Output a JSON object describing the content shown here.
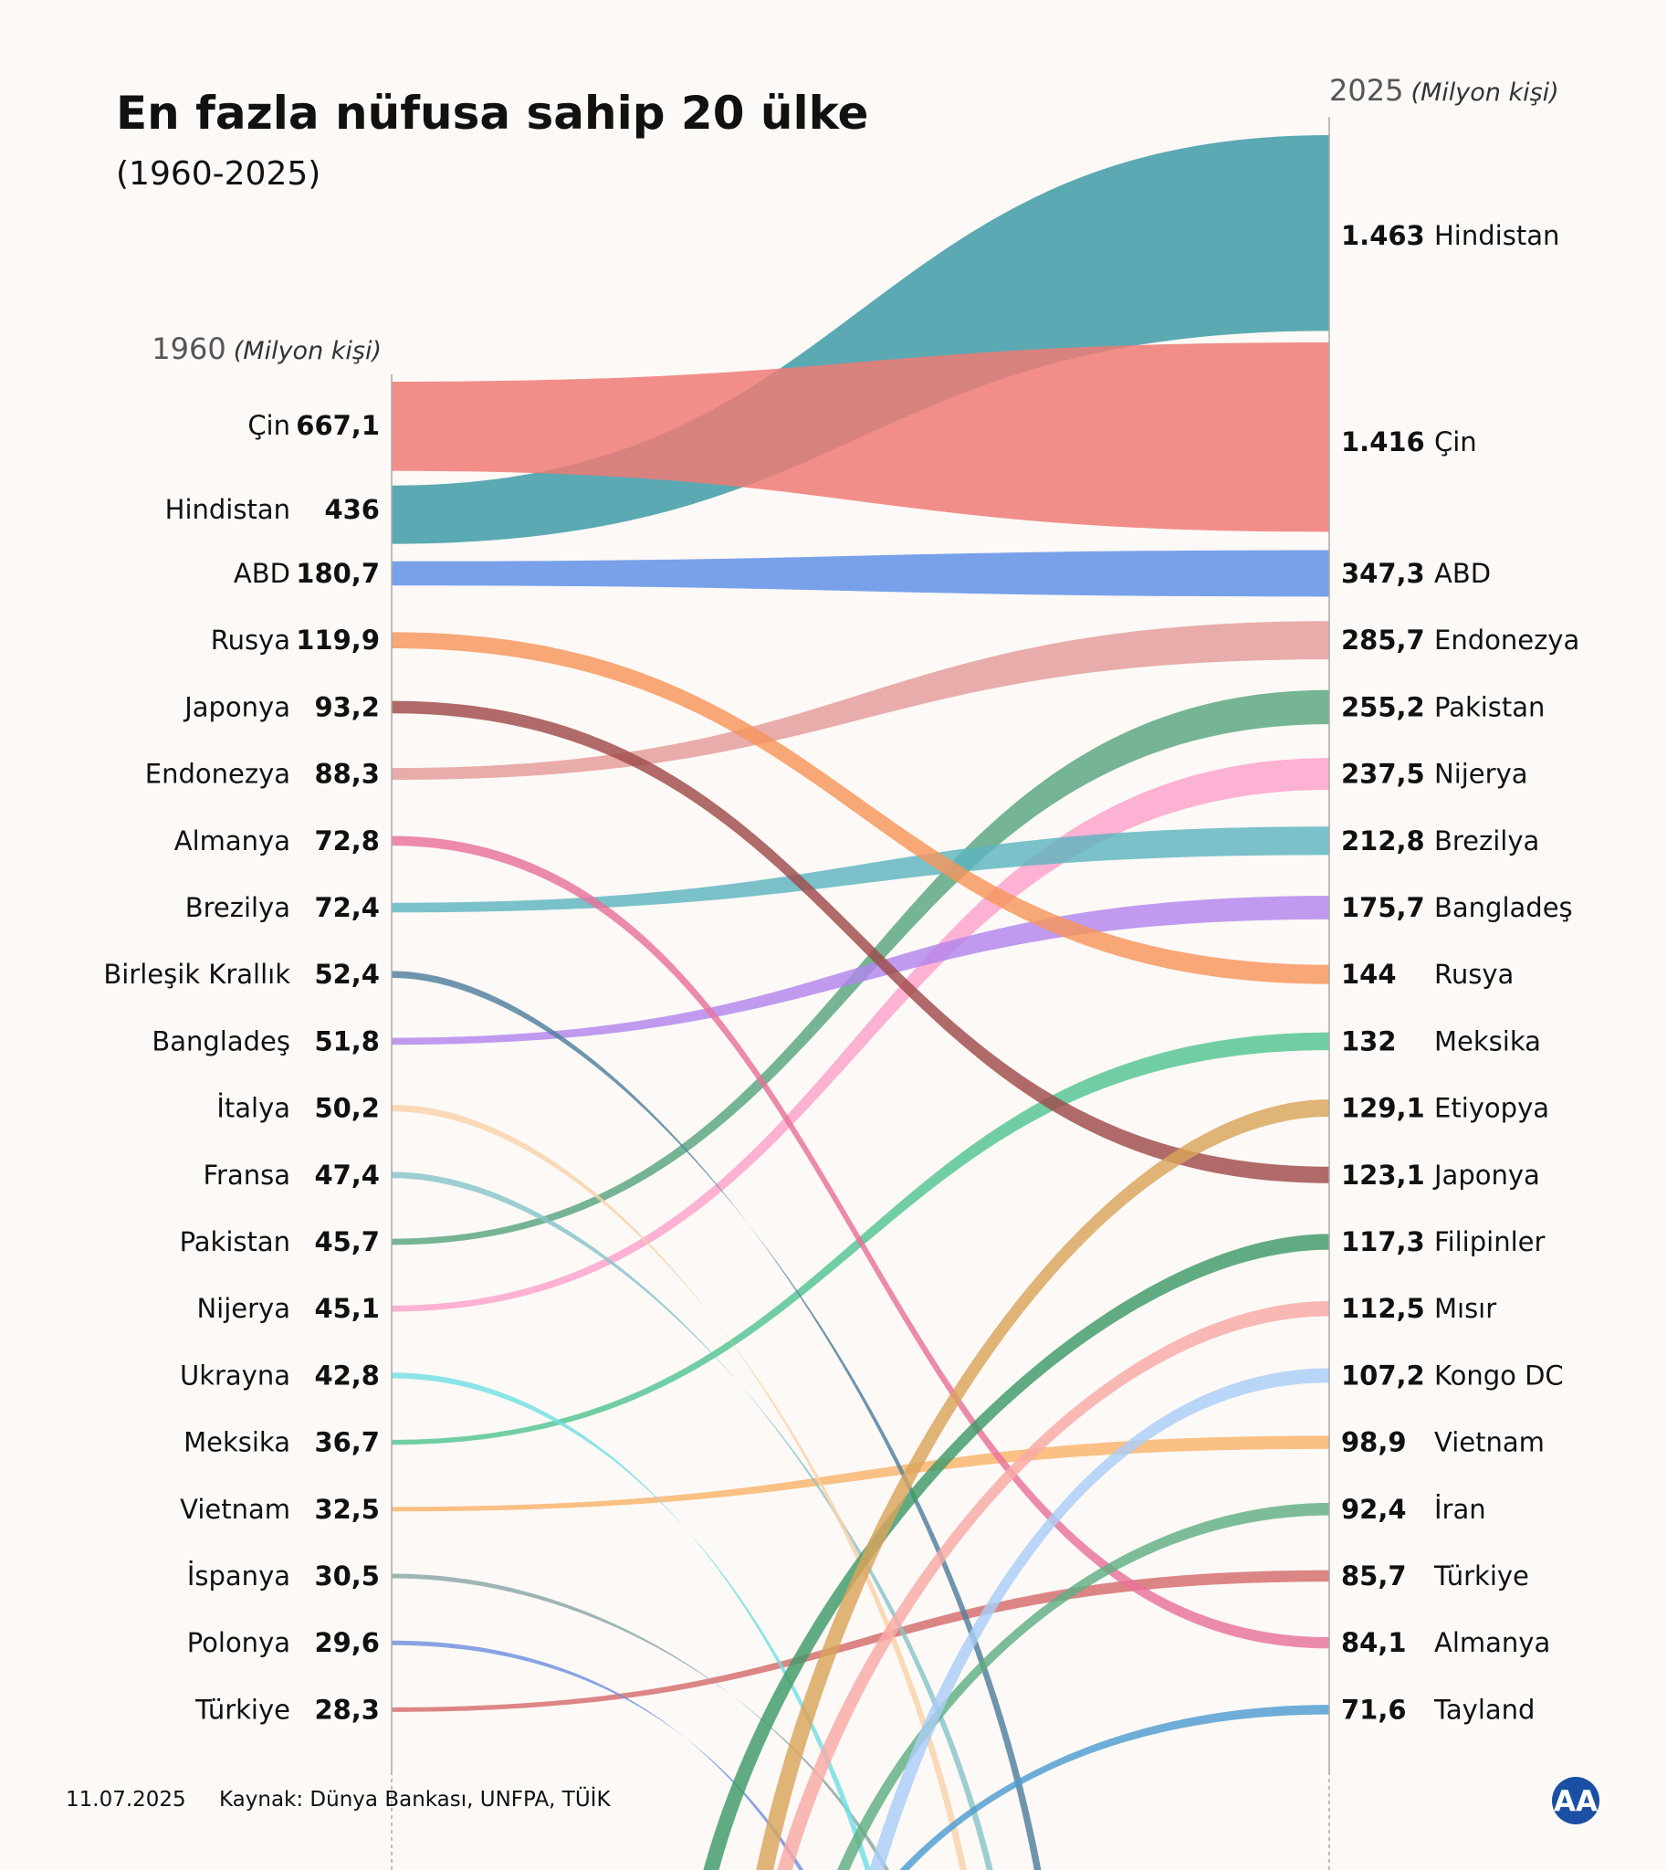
{
  "title": "En fazla nüfusa sahip 20 ülke",
  "subtitle": "(1960-2025)",
  "footer": {
    "date": "11.07.2025",
    "source": "Kaynak: Dünya Bankası, UNFPA, TÜİK",
    "logo_text": "AA"
  },
  "chart_data": {
    "type": "sankey-bump",
    "unit": "(Milyon kişi)",
    "left_year": "1960",
    "right_year": "2025",
    "left": [
      {
        "name": "Çin",
        "value": "667,1",
        "v": 667.1,
        "color": "#ef7b77"
      },
      {
        "name": "Hindistan",
        "value": "436",
        "v": 436,
        "color": "#3e9ba6"
      },
      {
        "name": "ABD",
        "value": "180,7",
        "v": 180.7,
        "color": "#5b8ee6"
      },
      {
        "name": "Rusya",
        "value": "119,9",
        "v": 119.9,
        "color": "#f7955a"
      },
      {
        "name": "Japonya",
        "value": "93,2",
        "v": 93.2,
        "color": "#9f4b49"
      },
      {
        "name": "Endonezya",
        "value": "88,3",
        "v": 88.3,
        "color": "#e39b9a"
      },
      {
        "name": "Almanya",
        "value": "72,8",
        "v": 72.8,
        "color": "#e8729a"
      },
      {
        "name": "Brezilya",
        "value": "72,4",
        "v": 72.4,
        "color": "#5db4c0"
      },
      {
        "name": "Birleşik Krallık",
        "value": "52,4",
        "v": 52.4,
        "color": "#4f7f9e"
      },
      {
        "name": "Bangladeş",
        "value": "51,8",
        "v": 51.8,
        "color": "#b185ec"
      },
      {
        "name": "İtalya",
        "value": "50,2",
        "v": 50.2,
        "color": "#f9d2a8"
      },
      {
        "name": "Fransa",
        "value": "47,4",
        "v": 47.4,
        "color": "#86c4c9"
      },
      {
        "name": "Pakistan",
        "value": "45,7",
        "v": 45.7,
        "color": "#57a57e"
      },
      {
        "name": "Nijerya",
        "value": "45,1",
        "v": 45.1,
        "color": "#fca1cb"
      },
      {
        "name": "Ukrayna",
        "value": "42,8",
        "v": 42.8,
        "color": "#71dfe3"
      },
      {
        "name": "Meksika",
        "value": "36,7",
        "v": 36.7,
        "color": "#52c491"
      },
      {
        "name": "Vietnam",
        "value": "32,5",
        "v": 32.5,
        "color": "#f9b36a"
      },
      {
        "name": "İspanya",
        "value": "30,5",
        "v": 30.5,
        "color": "#8aa6a6"
      },
      {
        "name": "Polonya",
        "value": "29,6",
        "v": 29.6,
        "color": "#6f8fdf"
      },
      {
        "name": "Türkiye",
        "value": "28,3",
        "v": 28.3,
        "color": "#d46b6b"
      }
    ],
    "right": [
      {
        "name": "Hindistan",
        "value": "1.463",
        "v": 1463,
        "color": "#3e9ba6"
      },
      {
        "name": "Çin",
        "value": "1.416",
        "v": 1416,
        "color": "#ef7b77"
      },
      {
        "name": "ABD",
        "value": "347,3",
        "v": 347.3,
        "color": "#5b8ee6"
      },
      {
        "name": "Endonezya",
        "value": "285,7",
        "v": 285.7,
        "color": "#e39b9a"
      },
      {
        "name": "Pakistan",
        "value": "255,2",
        "v": 255.2,
        "color": "#57a57e"
      },
      {
        "name": "Nijerya",
        "value": "237,5",
        "v": 237.5,
        "color": "#fca1cb"
      },
      {
        "name": "Brezilya",
        "value": "212,8",
        "v": 212.8,
        "color": "#5db4c0"
      },
      {
        "name": "Bangladeş",
        "value": "175,7",
        "v": 175.7,
        "color": "#b185ec"
      },
      {
        "name": "Rusya",
        "value": "144",
        "v": 144,
        "color": "#f7955a"
      },
      {
        "name": "Meksika",
        "value": "132",
        "v": 132,
        "color": "#52c491"
      },
      {
        "name": "Etiyopya",
        "value": "129,1",
        "v": 129.1,
        "color": "#d9a45a"
      },
      {
        "name": "Japonya",
        "value": "123,1",
        "v": 123.1,
        "color": "#9f4b49"
      },
      {
        "name": "Filipinler",
        "value": "117,3",
        "v": 117.3,
        "color": "#3e9a68"
      },
      {
        "name": "Mısır",
        "value": "112,5",
        "v": 112.5,
        "color": "#f9aaa6"
      },
      {
        "name": "Kongo DC",
        "value": "107,2",
        "v": 107.2,
        "color": "#a9cdf6"
      },
      {
        "name": "Vietnam",
        "value": "98,9",
        "v": 98.9,
        "color": "#f9b36a"
      },
      {
        "name": "İran",
        "value": "92,4",
        "v": 92.4,
        "color": "#5fae83"
      },
      {
        "name": "Türkiye",
        "value": "85,7",
        "v": 85.7,
        "color": "#d46b6b"
      },
      {
        "name": "Almanya",
        "value": "84,1",
        "v": 84.1,
        "color": "#e8729a"
      },
      {
        "name": "Tayland",
        "value": "71,6",
        "v": 71.6,
        "color": "#4e9cd0"
      }
    ],
    "exits_left": [
      "Birleşik Krallık",
      "İtalya",
      "Fransa",
      "Ukrayna",
      "İspanya",
      "Polonya"
    ],
    "entries_right": [
      "Etiyopya",
      "Filipinler",
      "Mısır",
      "Kongo DC",
      "İran",
      "Tayland"
    ]
  }
}
